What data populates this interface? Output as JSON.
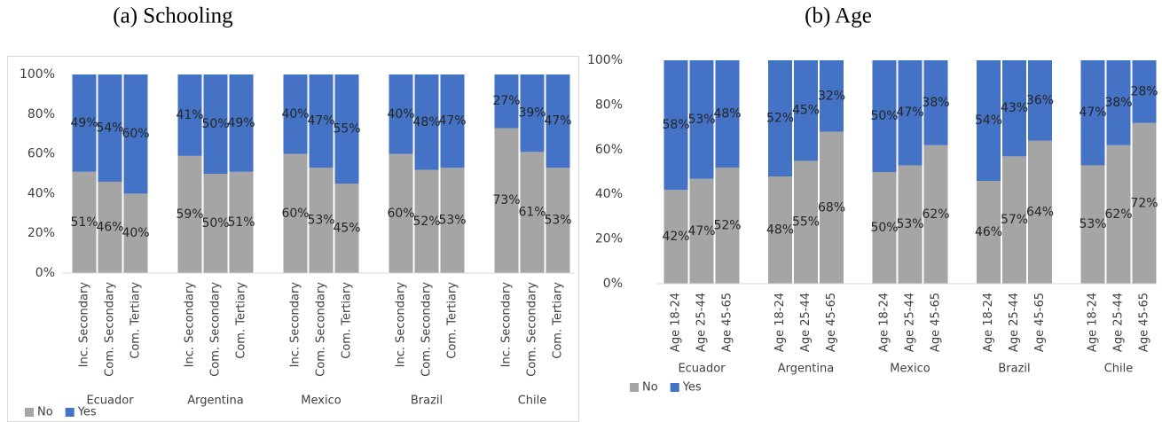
{
  "chart_data": [
    {
      "type": "stacked_bar",
      "title": "(a) Schooling",
      "groups": [
        "Ecuador",
        "Argentina",
        "Mexico",
        "Brazil",
        "Chile"
      ],
      "categories": [
        "Inc. Secondary",
        "Com. Secondary",
        "Com. Tertiary",
        "Inc. Secondary",
        "Com. Secondary",
        "Com. Tertiary",
        "Inc. Secondary",
        "Com. Secondary",
        "Com. Tertiary",
        "Inc. Secondary",
        "Com. Secondary",
        "Com. Tertiary",
        "Inc. Secondary",
        "Com. Secondary",
        "Com. Tertiary"
      ],
      "series": [
        {
          "name": "No",
          "color": "#a5a5a5",
          "values": [
            51,
            46,
            40,
            59,
            50,
            51,
            60,
            53,
            45,
            60,
            52,
            53,
            73,
            61,
            53
          ],
          "value_labels": [
            "51%",
            "46%",
            "40%",
            "59%",
            "50%",
            "51%",
            "60%",
            "53%",
            "45%",
            "60%",
            "52%",
            "53%",
            "73%",
            "61%",
            "53%"
          ]
        },
        {
          "name": "Yes",
          "color": "#4472c4",
          "values": [
            49,
            54,
            60,
            41,
            50,
            49,
            40,
            47,
            55,
            40,
            48,
            47,
            27,
            39,
            47
          ],
          "value_labels": [
            "49%",
            "54%",
            "60%",
            "41%",
            "50%",
            "49%",
            "40%",
            "47%",
            "55%",
            "40%",
            "48%",
            "47%",
            "27%",
            "39%",
            "47%"
          ]
        }
      ],
      "ylim": [
        0,
        100
      ],
      "yticks": [
        {
          "value": 0,
          "label": "0%"
        },
        {
          "value": 20,
          "label": "20%"
        },
        {
          "value": 40,
          "label": "40%"
        },
        {
          "value": 60,
          "label": "60%"
        },
        {
          "value": 80,
          "label": "80%"
        },
        {
          "value": 100,
          "label": "100%"
        }
      ]
    },
    {
      "type": "stacked_bar",
      "title": "(b) Age",
      "groups": [
        "Ecuador",
        "Argentina",
        "Mexico",
        "Brazil",
        "Chile"
      ],
      "categories": [
        "Age 18-24",
        "Age 25-44",
        "Age 45-65",
        "Age 18-24",
        "Age 25-44",
        "Age 45-65",
        "Age 18-24",
        "Age 25-44",
        "Age 45-65",
        "Age 18-24",
        "Age 25-44",
        "Age 45-65",
        "Age 18-24",
        "Age 25-44",
        "Age 45-65"
      ],
      "series": [
        {
          "name": "No",
          "color": "#a5a5a5",
          "values": [
            42,
            47,
            52,
            48,
            55,
            68,
            50,
            53,
            62,
            46,
            57,
            64,
            53,
            62,
            72
          ],
          "value_labels": [
            "42%",
            "47%",
            "52%",
            "48%",
            "55%",
            "68%",
            "50%",
            "53%",
            "62%",
            "46%",
            "57%",
            "64%",
            "53%",
            "62%",
            "72%"
          ]
        },
        {
          "name": "Yes",
          "color": "#4472c4",
          "values": [
            58,
            53,
            48,
            52,
            45,
            32,
            50,
            47,
            38,
            54,
            43,
            36,
            47,
            38,
            28
          ],
          "value_labels": [
            "58%",
            "53%",
            "48%",
            "52%",
            "45%",
            "32%",
            "50%",
            "47%",
            "38%",
            "54%",
            "43%",
            "36%",
            "47%",
            "38%",
            "28%"
          ]
        }
      ],
      "ylim": [
        0,
        100
      ],
      "yticks": [
        {
          "value": 0,
          "label": "0%"
        },
        {
          "value": 20,
          "label": "20%"
        },
        {
          "value": 40,
          "label": "40%"
        },
        {
          "value": 60,
          "label": "60%"
        },
        {
          "value": 80,
          "label": "80%"
        },
        {
          "value": 100,
          "label": "100%"
        }
      ]
    }
  ]
}
